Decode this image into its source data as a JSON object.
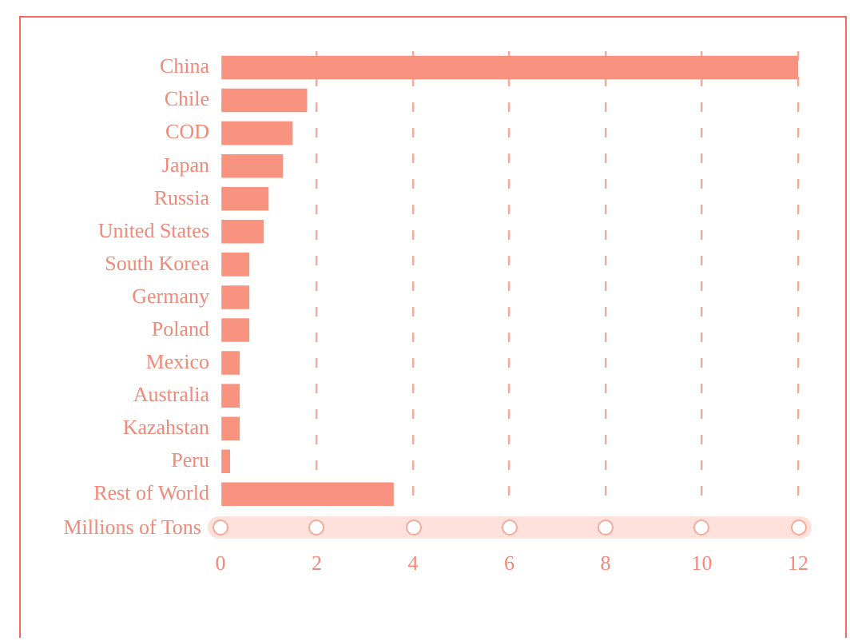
{
  "chart_data": {
    "type": "bar",
    "orientation": "horizontal",
    "xlabel": "Millions of Tons",
    "categories": [
      "China",
      "Chile",
      "COD",
      "Japan",
      "Russia",
      "United States",
      "South Korea",
      "Germany",
      "Poland",
      "Mexico",
      "Australia",
      "Kazahstan",
      "Peru",
      "Rest of World"
    ],
    "values": [
      12.0,
      1.8,
      1.5,
      1.3,
      1.0,
      0.9,
      0.6,
      0.6,
      0.6,
      0.4,
      0.4,
      0.4,
      0.2,
      3.6
    ],
    "color": "#f7937f",
    "xlim": [
      0,
      12
    ],
    "xticks": [
      0,
      2,
      4,
      6,
      8,
      10,
      12
    ],
    "grid": "x"
  }
}
